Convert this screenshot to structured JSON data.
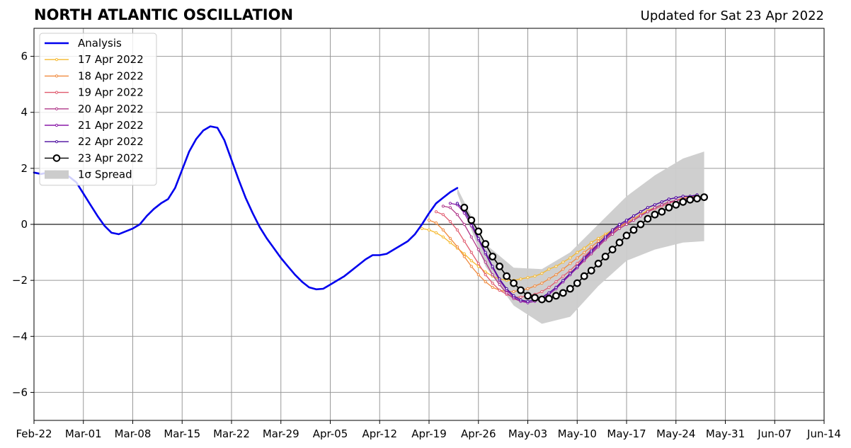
{
  "chart_data": {
    "type": "line",
    "title": "NORTH ATLANTIC OSCILLATION",
    "subtitle": "Updated for Sat 23 Apr 2022",
    "xlabel": "",
    "ylabel": "",
    "xlim": [
      "2022-02-22",
      "2022-06-14"
    ],
    "ylim": [
      -7,
      7
    ],
    "x_ticks": [
      "Feb-22",
      "Mar-01",
      "Mar-08",
      "Mar-15",
      "Mar-22",
      "Mar-29",
      "Apr-05",
      "Apr-12",
      "Apr-19",
      "Apr-26",
      "May-03",
      "May-10",
      "May-17",
      "May-24",
      "May-31",
      "Jun-07",
      "Jun-14"
    ],
    "y_ticks": [
      6,
      4,
      2,
      0,
      -2,
      -4,
      -6
    ],
    "y_tick_labels": [
      "6",
      "4",
      "2",
      "0",
      "−2",
      "−4",
      "−6"
    ],
    "grid": true,
    "legend_position": "top-left",
    "series": [
      {
        "name": "Analysis",
        "color": "#0000ee",
        "x": [
          "2022-02-22",
          "2022-02-23",
          "2022-02-24",
          "2022-02-25",
          "2022-02-26",
          "2022-02-27",
          "2022-02-28",
          "2022-03-01",
          "2022-03-02",
          "2022-03-03",
          "2022-03-04",
          "2022-03-05",
          "2022-03-06",
          "2022-03-07",
          "2022-03-08",
          "2022-03-09",
          "2022-03-10",
          "2022-03-11",
          "2022-03-12",
          "2022-03-13",
          "2022-03-14",
          "2022-03-15",
          "2022-03-16",
          "2022-03-17",
          "2022-03-18",
          "2022-03-19",
          "2022-03-20",
          "2022-03-21",
          "2022-03-22",
          "2022-03-23",
          "2022-03-24",
          "2022-03-25",
          "2022-03-26",
          "2022-03-27",
          "2022-03-28",
          "2022-03-29",
          "2022-03-30",
          "2022-03-31",
          "2022-04-01",
          "2022-04-02",
          "2022-04-03",
          "2022-04-04",
          "2022-04-05",
          "2022-04-06",
          "2022-04-07",
          "2022-04-08",
          "2022-04-09",
          "2022-04-10",
          "2022-04-11",
          "2022-04-12",
          "2022-04-13",
          "2022-04-14",
          "2022-04-15",
          "2022-04-16",
          "2022-04-17",
          "2022-04-18",
          "2022-04-19",
          "2022-04-20",
          "2022-04-21",
          "2022-04-22",
          "2022-04-23"
        ],
        "y": [
          1.85,
          1.8,
          1.85,
          1.9,
          1.85,
          1.7,
          1.5,
          1.1,
          0.7,
          0.3,
          -0.05,
          -0.3,
          -0.35,
          -0.25,
          -0.15,
          0.0,
          0.3,
          0.55,
          0.75,
          0.9,
          1.3,
          1.95,
          2.6,
          3.05,
          3.35,
          3.5,
          3.45,
          3.0,
          2.3,
          1.6,
          0.95,
          0.4,
          -0.1,
          -0.5,
          -0.85,
          -1.2,
          -1.5,
          -1.8,
          -2.05,
          -2.25,
          -2.32,
          -2.3,
          -2.15,
          -2.0,
          -1.85,
          -1.65,
          -1.45,
          -1.25,
          -1.1,
          -1.1,
          -1.05,
          -0.9,
          -0.75,
          -0.6,
          -0.35,
          0.0,
          0.4,
          0.75,
          0.95,
          1.15,
          1.3
        ]
      },
      {
        "name": "17 Apr 2022",
        "color": "#f5b82e",
        "x": [
          "2022-04-18",
          "2022-04-19",
          "2022-04-20",
          "2022-04-21",
          "2022-04-22",
          "2022-04-23",
          "2022-04-24",
          "2022-04-25",
          "2022-04-26",
          "2022-04-27",
          "2022-04-28",
          "2022-04-29",
          "2022-04-30",
          "2022-05-01",
          "2022-05-02",
          "2022-05-03",
          "2022-05-04",
          "2022-05-05",
          "2022-05-06",
          "2022-05-07",
          "2022-05-08",
          "2022-05-09",
          "2022-05-10",
          "2022-05-11",
          "2022-05-12",
          "2022-05-13",
          "2022-05-14",
          "2022-05-15",
          "2022-05-16",
          "2022-05-17",
          "2022-05-18",
          "2022-05-19",
          "2022-05-20",
          "2022-05-21",
          "2022-05-22",
          "2022-05-23",
          "2022-05-24",
          "2022-05-25",
          "2022-05-26",
          "2022-05-27"
        ],
        "y": [
          -0.15,
          -0.2,
          -0.3,
          -0.45,
          -0.65,
          -0.85,
          -1.05,
          -1.3,
          -1.5,
          -1.7,
          -1.85,
          -1.95,
          -2.0,
          -2.0,
          -1.95,
          -1.9,
          -1.85,
          -1.75,
          -1.6,
          -1.5,
          -1.35,
          -1.2,
          -1.0,
          -0.85,
          -0.65,
          -0.5,
          -0.35,
          -0.2,
          -0.05,
          0.05,
          0.2,
          0.35,
          0.5,
          0.6,
          0.7,
          0.8,
          0.85,
          0.9,
          0.95,
          1.0
        ]
      },
      {
        "name": "18 Apr 2022",
        "color": "#f08a3e",
        "x": [
          "2022-04-19",
          "2022-04-20",
          "2022-04-21",
          "2022-04-22",
          "2022-04-23",
          "2022-04-24",
          "2022-04-25",
          "2022-04-26",
          "2022-04-27",
          "2022-04-28",
          "2022-04-29",
          "2022-04-30",
          "2022-05-01",
          "2022-05-02",
          "2022-05-03",
          "2022-05-04",
          "2022-05-05",
          "2022-05-06",
          "2022-05-07",
          "2022-05-08",
          "2022-05-09",
          "2022-05-10",
          "2022-05-11",
          "2022-05-12",
          "2022-05-13",
          "2022-05-14",
          "2022-05-15",
          "2022-05-16",
          "2022-05-17",
          "2022-05-18",
          "2022-05-19",
          "2022-05-20",
          "2022-05-21",
          "2022-05-22",
          "2022-05-23",
          "2022-05-24",
          "2022-05-25",
          "2022-05-26",
          "2022-05-27"
        ],
        "y": [
          0.15,
          0.05,
          -0.2,
          -0.5,
          -0.8,
          -1.15,
          -1.5,
          -1.8,
          -2.05,
          -2.25,
          -2.35,
          -2.4,
          -2.4,
          -2.35,
          -2.3,
          -2.2,
          -2.1,
          -1.95,
          -1.8,
          -1.6,
          -1.4,
          -1.2,
          -1.0,
          -0.8,
          -0.6,
          -0.4,
          -0.25,
          -0.1,
          0.05,
          0.2,
          0.35,
          0.45,
          0.6,
          0.7,
          0.8,
          0.85,
          0.95,
          1.0,
          1.0
        ]
      },
      {
        "name": "19 Apr 2022",
        "color": "#e05a6e",
        "x": [
          "2022-04-20",
          "2022-04-21",
          "2022-04-22",
          "2022-04-23",
          "2022-04-24",
          "2022-04-25",
          "2022-04-26",
          "2022-04-27",
          "2022-04-28",
          "2022-04-29",
          "2022-04-30",
          "2022-05-01",
          "2022-05-02",
          "2022-05-03",
          "2022-05-04",
          "2022-05-05",
          "2022-05-06",
          "2022-05-07",
          "2022-05-08",
          "2022-05-09",
          "2022-05-10",
          "2022-05-11",
          "2022-05-12",
          "2022-05-13",
          "2022-05-14",
          "2022-05-15",
          "2022-05-16",
          "2022-05-17",
          "2022-05-18",
          "2022-05-19",
          "2022-05-20",
          "2022-05-21",
          "2022-05-22",
          "2022-05-23",
          "2022-05-24",
          "2022-05-25",
          "2022-05-26",
          "2022-05-27"
        ],
        "y": [
          0.45,
          0.35,
          0.1,
          -0.2,
          -0.6,
          -1.0,
          -1.4,
          -1.8,
          -2.1,
          -2.35,
          -2.5,
          -2.6,
          -2.6,
          -2.55,
          -2.5,
          -2.4,
          -2.25,
          -2.05,
          -1.85,
          -1.65,
          -1.4,
          -1.15,
          -0.9,
          -0.7,
          -0.5,
          -0.3,
          -0.15,
          0.0,
          0.15,
          0.3,
          0.45,
          0.55,
          0.65,
          0.75,
          0.85,
          0.9,
          0.95,
          1.0
        ]
      },
      {
        "name": "20 Apr 2022",
        "color": "#b0388a",
        "x": [
          "2022-04-21",
          "2022-04-22",
          "2022-04-23",
          "2022-04-24",
          "2022-04-25",
          "2022-04-26",
          "2022-04-27",
          "2022-04-28",
          "2022-04-29",
          "2022-04-30",
          "2022-05-01",
          "2022-05-02",
          "2022-05-03",
          "2022-05-04",
          "2022-05-05",
          "2022-05-06",
          "2022-05-07",
          "2022-05-08",
          "2022-05-09",
          "2022-05-10",
          "2022-05-11",
          "2022-05-12",
          "2022-05-13",
          "2022-05-14",
          "2022-05-15",
          "2022-05-16",
          "2022-05-17",
          "2022-05-18",
          "2022-05-19",
          "2022-05-20",
          "2022-05-21",
          "2022-05-22",
          "2022-05-23",
          "2022-05-24",
          "2022-05-25",
          "2022-05-26",
          "2022-05-27"
        ],
        "y": [
          0.65,
          0.6,
          0.35,
          0.0,
          -0.45,
          -0.9,
          -1.35,
          -1.8,
          -2.15,
          -2.45,
          -2.65,
          -2.75,
          -2.75,
          -2.7,
          -2.6,
          -2.45,
          -2.25,
          -2.05,
          -1.8,
          -1.55,
          -1.3,
          -1.05,
          -0.8,
          -0.55,
          -0.35,
          -0.15,
          0.0,
          0.15,
          0.3,
          0.45,
          0.6,
          0.7,
          0.8,
          0.85,
          0.9,
          0.95,
          1.0
        ]
      },
      {
        "name": "21 Apr 2022",
        "color": "#8a1aa8",
        "x": [
          "2022-04-22",
          "2022-04-23",
          "2022-04-24",
          "2022-04-25",
          "2022-04-26",
          "2022-04-27",
          "2022-04-28",
          "2022-04-29",
          "2022-04-30",
          "2022-05-01",
          "2022-05-02",
          "2022-05-03",
          "2022-05-04",
          "2022-05-05",
          "2022-05-06",
          "2022-05-07",
          "2022-05-08",
          "2022-05-09",
          "2022-05-10",
          "2022-05-11",
          "2022-05-12",
          "2022-05-13",
          "2022-05-14",
          "2022-05-15",
          "2022-05-16",
          "2022-05-17",
          "2022-05-18",
          "2022-05-19",
          "2022-05-20",
          "2022-05-21",
          "2022-05-22",
          "2022-05-23",
          "2022-05-24",
          "2022-05-25",
          "2022-05-26",
          "2022-05-27"
        ],
        "y": [
          0.75,
          0.7,
          0.4,
          -0.05,
          -0.55,
          -1.05,
          -1.55,
          -2.0,
          -2.35,
          -2.6,
          -2.75,
          -2.8,
          -2.75,
          -2.65,
          -2.5,
          -2.3,
          -2.05,
          -1.8,
          -1.55,
          -1.25,
          -1.0,
          -0.75,
          -0.5,
          -0.25,
          -0.05,
          0.1,
          0.3,
          0.45,
          0.6,
          0.7,
          0.8,
          0.9,
          0.95,
          1.0,
          1.0,
          1.05
        ]
      },
      {
        "name": "22 Apr 2022",
        "color": "#4a0a9e",
        "x": [
          "2022-04-23",
          "2022-04-24",
          "2022-04-25",
          "2022-04-26",
          "2022-04-27",
          "2022-04-28",
          "2022-04-29",
          "2022-04-30",
          "2022-05-01",
          "2022-05-02",
          "2022-05-03",
          "2022-05-04",
          "2022-05-05",
          "2022-05-06",
          "2022-05-07",
          "2022-05-08",
          "2022-05-09",
          "2022-05-10",
          "2022-05-11",
          "2022-05-12",
          "2022-05-13",
          "2022-05-14",
          "2022-05-15",
          "2022-05-16",
          "2022-05-17",
          "2022-05-18",
          "2022-05-19",
          "2022-05-20",
          "2022-05-21",
          "2022-05-22",
          "2022-05-23",
          "2022-05-24",
          "2022-05-25",
          "2022-05-26",
          "2022-05-27"
        ],
        "y": [
          0.75,
          0.5,
          0.05,
          -0.5,
          -1.0,
          -1.5,
          -1.95,
          -2.3,
          -2.55,
          -2.7,
          -2.75,
          -2.7,
          -2.6,
          -2.45,
          -2.25,
          -2.0,
          -1.75,
          -1.5,
          -1.2,
          -0.95,
          -0.7,
          -0.45,
          -0.2,
          0.0,
          0.15,
          0.3,
          0.45,
          0.6,
          0.7,
          0.8,
          0.9,
          0.95,
          1.0,
          1.0,
          1.05
        ]
      },
      {
        "name": "23 Apr 2022",
        "color": "#000000",
        "x": [
          "2022-04-24",
          "2022-04-25",
          "2022-04-26",
          "2022-04-27",
          "2022-04-28",
          "2022-04-29",
          "2022-04-30",
          "2022-05-01",
          "2022-05-02",
          "2022-05-03",
          "2022-05-04",
          "2022-05-05",
          "2022-05-06",
          "2022-05-07",
          "2022-05-08",
          "2022-05-09",
          "2022-05-10",
          "2022-05-11",
          "2022-05-12",
          "2022-05-13",
          "2022-05-14",
          "2022-05-15",
          "2022-05-16",
          "2022-05-17",
          "2022-05-18",
          "2022-05-19",
          "2022-05-20",
          "2022-05-21",
          "2022-05-22",
          "2022-05-23",
          "2022-05-24",
          "2022-05-25",
          "2022-05-26",
          "2022-05-27",
          "2022-05-28"
        ],
        "y": [
          0.6,
          0.15,
          -0.25,
          -0.7,
          -1.15,
          -1.5,
          -1.85,
          -2.1,
          -2.35,
          -2.55,
          -2.62,
          -2.68,
          -2.65,
          -2.55,
          -2.45,
          -2.3,
          -2.1,
          -1.85,
          -1.65,
          -1.4,
          -1.15,
          -0.9,
          -0.65,
          -0.4,
          -0.2,
          0.0,
          0.2,
          0.35,
          0.45,
          0.6,
          0.7,
          0.8,
          0.88,
          0.92,
          0.97
        ]
      }
    ],
    "spread": {
      "name": "1σ Spread",
      "color": "#cccccc",
      "x": [
        "2022-04-23",
        "2022-04-27",
        "2022-05-01",
        "2022-05-05",
        "2022-05-09",
        "2022-05-13",
        "2022-05-17",
        "2022-05-21",
        "2022-05-25",
        "2022-05-28"
      ],
      "upper": [
        1.3,
        -0.7,
        -1.55,
        -1.6,
        -1.0,
        0.0,
        1.0,
        1.75,
        2.35,
        2.6
      ],
      "lower": [
        1.1,
        -1.5,
        -2.9,
        -3.55,
        -3.3,
        -2.2,
        -1.3,
        -0.9,
        -0.65,
        -0.6
      ]
    }
  }
}
